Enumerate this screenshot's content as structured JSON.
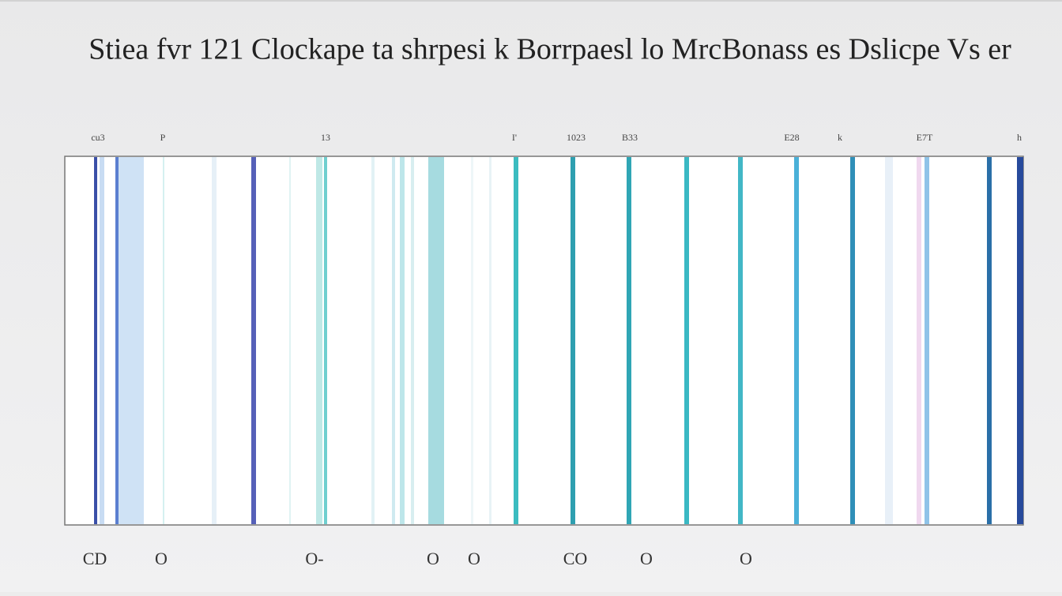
{
  "header": {
    "title": "Stiea fvr 121 Clockape ta shrpesi k Borrpaesl lo MrcBonass es Dslicpe Vs er"
  },
  "top_labels": [
    "cu3",
    "P",
    "13",
    "I'",
    "1023",
    "B33",
    "E28",
    "k",
    "E7T",
    "h"
  ],
  "bottom_labels": [
    "CD",
    "O",
    "O-",
    "O",
    "O",
    "CO",
    "O",
    "O"
  ]
}
